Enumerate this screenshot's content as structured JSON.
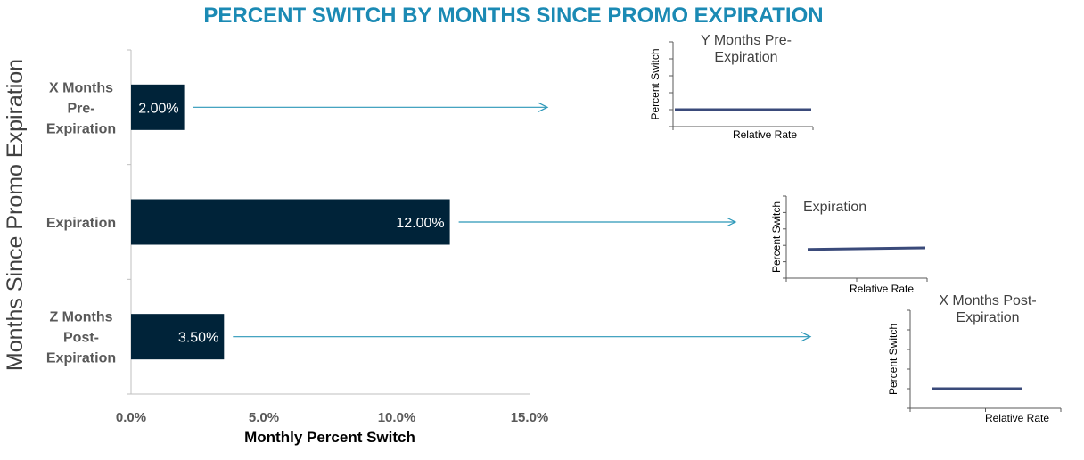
{
  "colors": {
    "title": "#1b8ab4",
    "bar": "#002339",
    "arrow": "#2b97b8",
    "axis": "#bfbfbf",
    "mini_line": "#3a4a7a",
    "label_gray": "#595959"
  },
  "chart_data": [
    {
      "type": "bar",
      "orientation": "horizontal",
      "title": "PERCENT SWITCH BY MONTHS SINCE PROMO EXPIRATION",
      "xlabel": "Monthly Percent Switch",
      "ylabel": "Months Since Promo Expiration",
      "categories": [
        [
          "X Months",
          "Pre-",
          "Expiration"
        ],
        [
          "Expiration"
        ],
        [
          "Z Months",
          "Post-",
          "Expiration"
        ]
      ],
      "values": [
        2.0,
        12.0,
        3.5
      ],
      "data_labels": [
        "2.00%",
        "12.00%",
        "3.50%"
      ],
      "xlim": [
        0,
        15
      ],
      "xticks": [
        0,
        5,
        10,
        15
      ],
      "xtick_labels": [
        "0.0%",
        "5.0%",
        "10.0%",
        "15.0%"
      ],
      "grid": false
    },
    {
      "type": "line",
      "title": [
        "Y Months Pre-",
        "Expiration"
      ],
      "xlabel": "Relative Rate",
      "ylabel": "Percent Switch",
      "x": [
        0,
        1
      ],
      "y": [
        0.2,
        0.2
      ],
      "ylim": [
        0,
        1
      ]
    },
    {
      "type": "line",
      "title": [
        "Expiration"
      ],
      "xlabel": "Relative Rate",
      "ylabel": "Percent Switch",
      "x": [
        0,
        1
      ],
      "y": [
        0.35,
        0.37
      ],
      "ylim": [
        0,
        1
      ]
    },
    {
      "type": "line",
      "title": [
        "X Months Post-",
        "Expiration"
      ],
      "xlabel": "Relative Rate",
      "ylabel": "Percent Switch",
      "x": [
        0,
        1
      ],
      "y": [
        0.2,
        0.2
      ],
      "ylim": [
        0,
        1
      ]
    }
  ]
}
